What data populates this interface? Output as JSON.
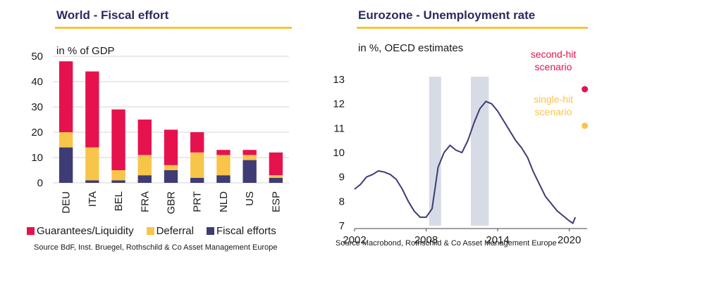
{
  "left": {
    "title": "World - Fiscal effort",
    "subtitle": "in % of GDP",
    "source": "Source BdF, Inst. Bruegel, Rothschild & Co Asset Management Europe",
    "legend": [
      {
        "name": "Guarantees/Liquidity",
        "color": "#e5124e"
      },
      {
        "name": "Deferral",
        "color": "#f8c54b"
      },
      {
        "name": "Fiscal efforts",
        "color": "#3f3b74"
      }
    ]
  },
  "right": {
    "title": "Eurozone - Unemployment rate",
    "subtitle": "in %, OECD estimates",
    "source": "Source Macrobond, Rothschild & Co Asset Management Europe",
    "second_hit": {
      "label_line1": "second-hit",
      "label_line2": "scenario",
      "value": 12.6,
      "color": "#e5124e"
    },
    "single_hit": {
      "label_line1": "single-hit",
      "label_line2": "scenario",
      "value": 11.1,
      "color": "#f8c54b"
    }
  },
  "chart_data": [
    {
      "type": "bar",
      "stacked": true,
      "title": "World - Fiscal effort",
      "ylabel": "in % of GDP",
      "ylim": [
        0,
        50
      ],
      "yticks": [
        0,
        10,
        20,
        30,
        40,
        50
      ],
      "categories": [
        "DEU",
        "ITA",
        "BEL",
        "FRA",
        "GBR",
        "PRT",
        "NLD",
        "US",
        "ESP"
      ],
      "series": [
        {
          "name": "Fiscal efforts",
          "color": "#3f3b74",
          "values": [
            14,
            1,
            1,
            3,
            5,
            2,
            3,
            9,
            2
          ]
        },
        {
          "name": "Deferral",
          "color": "#f8c54b",
          "values": [
            6,
            13,
            4,
            8,
            2,
            10,
            8,
            2,
            1
          ]
        },
        {
          "name": "Guarantees/Liquidity",
          "color": "#e5124e",
          "values": [
            28,
            30,
            24,
            14,
            14,
            8,
            2,
            2,
            9
          ]
        }
      ]
    },
    {
      "type": "line",
      "title": "Eurozone - Unemployment rate",
      "ylabel": "in %, OECD estimates",
      "ylim": [
        7,
        13
      ],
      "yticks": [
        7,
        8,
        9,
        10,
        11,
        12,
        13
      ],
      "xlim": [
        2002,
        2021.5
      ],
      "xticks": [
        2002,
        2008,
        2014,
        2020
      ],
      "recessions": [
        [
          2008.25,
          2009.25
        ],
        [
          2011.75,
          2013.25
        ]
      ],
      "series": [
        {
          "name": "Unemployment rate",
          "color": "#3f3b74",
          "x": [
            2002,
            2002.5,
            2003,
            2003.5,
            2004,
            2004.5,
            2005,
            2005.5,
            2006,
            2006.5,
            2007,
            2007.5,
            2008,
            2008.5,
            2009,
            2009.5,
            2010,
            2010.5,
            2011,
            2011.5,
            2012,
            2012.5,
            2013,
            2013.5,
            2014,
            2014.5,
            2015,
            2015.5,
            2016,
            2016.5,
            2017,
            2017.5,
            2018,
            2018.5,
            2019,
            2019.5,
            2020,
            2020.3,
            2020.5
          ],
          "y": [
            8.5,
            8.7,
            9.0,
            9.1,
            9.25,
            9.2,
            9.1,
            8.9,
            8.5,
            8.0,
            7.6,
            7.35,
            7.35,
            7.7,
            9.4,
            10.0,
            10.3,
            10.1,
            10.0,
            10.5,
            11.2,
            11.8,
            12.1,
            12.0,
            11.7,
            11.3,
            10.9,
            10.5,
            10.2,
            9.8,
            9.2,
            8.7,
            8.2,
            7.9,
            7.6,
            7.4,
            7.2,
            7.1,
            7.35
          ]
        }
      ],
      "scenarios": [
        {
          "name": "second-hit scenario",
          "x": 2021.3,
          "y": 12.6,
          "color": "#e5124e"
        },
        {
          "name": "single-hit scenario",
          "x": 2021.3,
          "y": 11.1,
          "color": "#f8c54b"
        }
      ]
    }
  ]
}
